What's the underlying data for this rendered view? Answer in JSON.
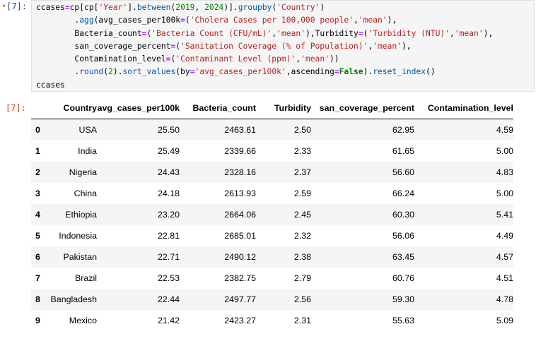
{
  "in_prompt": "[7]:",
  "out_prompt": "[7]:",
  "code_lines": [
    "ccases=cp[cp['Year'].between(2019, 2024)].groupby('Country')",
    "        .agg(avg_cases_per100k=('Cholera Cases per 100,000 people','mean'),",
    "        Bacteria_count=('Bacteria Count (CFU/mL)','mean'),Turbidity=('Turbidity (NTU)','mean'),",
    "        san_coverage_percent=('Sanitation Coverage (% of Population)','mean'),",
    "        Contamination_level=('Contaminant Level (ppm)','mean'))",
    "        .round(2).sort_values(by='avg_cases_per100k',ascending=False).reset_index()",
    "ccases"
  ],
  "table": {
    "columns": [
      "",
      "Country",
      "avg_cases_per100k",
      "Bacteria_count",
      "Turbidity",
      "san_coverage_percent",
      "Contamination_level"
    ],
    "rows": [
      [
        "0",
        "USA",
        "25.50",
        "2463.61",
        "2.50",
        "62.95",
        "4.59"
      ],
      [
        "1",
        "India",
        "25.49",
        "2339.66",
        "2.33",
        "61.65",
        "5.00"
      ],
      [
        "2",
        "Nigeria",
        "24.43",
        "2328.16",
        "2.37",
        "56.60",
        "4.83"
      ],
      [
        "3",
        "China",
        "24.18",
        "2613.93",
        "2.59",
        "66.24",
        "5.00"
      ],
      [
        "4",
        "Ethiopia",
        "23.20",
        "2664.06",
        "2.45",
        "60.30",
        "5.41"
      ],
      [
        "5",
        "Indonesia",
        "22.81",
        "2685.01",
        "2.32",
        "56.06",
        "4.49"
      ],
      [
        "6",
        "Pakistan",
        "22.71",
        "2490.12",
        "2.38",
        "63.45",
        "4.57"
      ],
      [
        "7",
        "Brazil",
        "22.53",
        "2382.75",
        "2.79",
        "60.76",
        "4.51"
      ],
      [
        "8",
        "Bangladesh",
        "22.44",
        "2497.77",
        "2.56",
        "59.30",
        "4.78"
      ],
      [
        "9",
        "Mexico",
        "21.42",
        "2423.27",
        "2.31",
        "55.63",
        "5.09"
      ]
    ]
  }
}
